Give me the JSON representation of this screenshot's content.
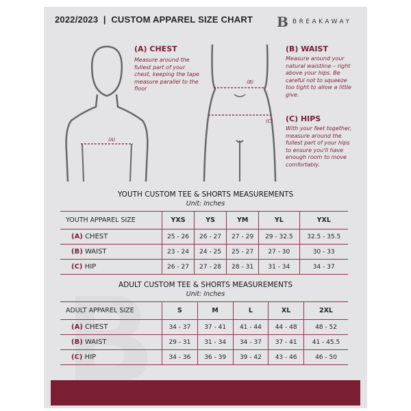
{
  "header": {
    "title": "2022/2023  |  CUSTOM APPAREL SIZE CHART",
    "brand": "BREAKAWAY",
    "brand_mark": "B"
  },
  "measure": {
    "chest": {
      "title": "(A) CHEST",
      "text": "Measure around the fullest part of your chest, keeping the tape measure parallel to the floor",
      "marker": "(A)"
    },
    "waist": {
      "title": "(B) WAIST",
      "text": "Measure around your natural waistline – right above your hips. Be careful not to squeeze too tight to allow a little give.",
      "marker": "(B)"
    },
    "hips": {
      "title": "(C) HIPS",
      "text": "With your feet together, measure around the fullest part of your hips to ensure you'll have enough room to move comfortably.",
      "marker": "(C)"
    }
  },
  "youth": {
    "title": "YOUTH CUSTOM TEE & SHORTS MEASUREMENTS",
    "unit": "Unit: Inches",
    "label": "YOUTH APPAREL SIZE",
    "sizes": [
      "YXS",
      "YS",
      "YM",
      "YL",
      "YXL"
    ],
    "rows": [
      {
        "letter": "(A)",
        "name": "CHEST",
        "values": [
          "25 - 26",
          "26 - 27",
          "27 - 29",
          "29 - 32.5",
          "32.5 - 35.5"
        ]
      },
      {
        "letter": "(B)",
        "name": "WAIST",
        "values": [
          "23 - 24",
          "24 - 25",
          "25 - 27",
          "27 - 30",
          "30 - 33"
        ]
      },
      {
        "letter": "(C)",
        "name": "HIP",
        "values": [
          "26 - 27",
          "27 - 28",
          "28 - 31",
          "31 - 34",
          "34 - 37"
        ]
      }
    ]
  },
  "adult": {
    "title": "ADULT CUSTOM TEE & SHORTS MEASUREMENTS",
    "unit": "Unit: Inches",
    "label": "ADULT APPAREL SIZE",
    "sizes": [
      "S",
      "M",
      "L",
      "XL",
      "2XL"
    ],
    "rows": [
      {
        "letter": "(A)",
        "name": "CHEST",
        "values": [
          "34 - 37",
          "37 - 41",
          "41 - 44",
          "44 - 48",
          "48 - 52"
        ]
      },
      {
        "letter": "(B)",
        "name": "WAIST",
        "values": [
          "29 - 31",
          "31 - 34",
          "34 - 37",
          "37 - 41",
          "41 - 45.5"
        ]
      },
      {
        "letter": "(C)",
        "name": "HIP",
        "values": [
          "34 - 36",
          "36 - 39",
          "39 - 42",
          "43 - 46",
          "46 - 50"
        ]
      }
    ]
  },
  "colors": {
    "accent": "#7a1f33",
    "background": "#e4e4e6"
  }
}
